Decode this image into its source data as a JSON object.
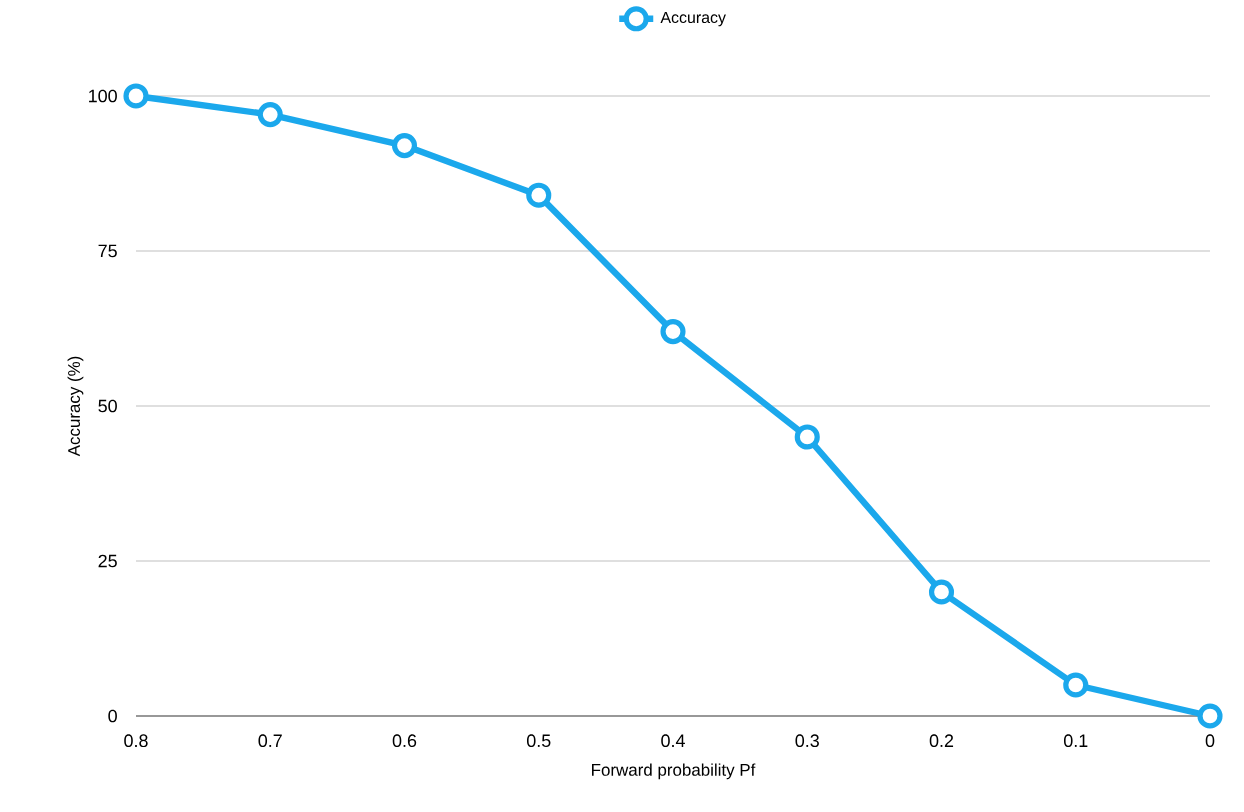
{
  "chart_data": {
    "type": "line",
    "xlabel": "Forward probability Pf",
    "ylabel": "Accuracy (%)",
    "x": [
      0.8,
      0.7,
      0.6,
      0.5,
      0.4,
      0.3,
      0.2,
      0.1,
      0
    ],
    "series": [
      {
        "name": "Accuracy",
        "color": "#1ba8ec",
        "values": [
          100,
          97,
          92,
          84,
          62,
          45,
          20,
          5,
          0
        ]
      }
    ],
    "xlim": [
      0.8,
      0
    ],
    "xticks": [
      0.8,
      0.7,
      0.6,
      0.5,
      0.4,
      0.3,
      0.2,
      0.1,
      0
    ],
    "ylim": [
      0,
      100
    ],
    "yticks": [
      0,
      25,
      50,
      75,
      100
    ],
    "grid": "y",
    "legend": "top",
    "marker": "circle",
    "line_style": "solid"
  }
}
